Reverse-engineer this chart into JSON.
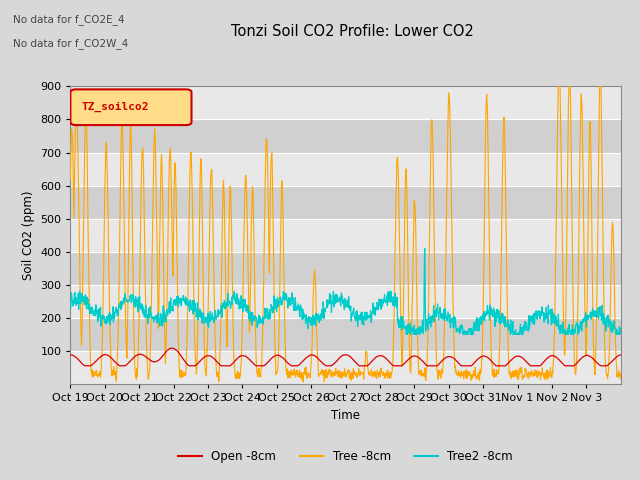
{
  "title": "Tonzi Soil CO2 Profile: Lower CO2",
  "ylabel": "Soil CO2 (ppm)",
  "xlabel": "Time",
  "ylim": [
    0,
    900
  ],
  "annotation1": "No data for f_CO2E_4",
  "annotation2": "No data for f_CO2W_4",
  "legend_box_label": "TZ_soilco2",
  "legend_box_color": "#cc0000",
  "legend_box_bg": "#ffdd88",
  "fig_bg": "#d8d8d8",
  "plot_bg_light": "#e8e8e8",
  "plot_bg_dark": "#d0d0d0",
  "x_tick_labels": [
    "Oct 19",
    "Oct 20",
    "Oct 21",
    "Oct 22",
    "Oct 23",
    "Oct 24",
    "Oct 25",
    "Oct 26",
    "Oct 27",
    "Oct 28",
    "Oct 29",
    "Oct 30",
    "Oct 31",
    "Nov 1",
    "Nov 2",
    "Nov 3"
  ],
  "series": {
    "open": {
      "color": "#dd0000",
      "label": "Open -8cm"
    },
    "tree": {
      "color": "#ffa500",
      "label": "Tree -8cm"
    },
    "tree2": {
      "color": "#00cccc",
      "label": "Tree2 -8cm"
    }
  }
}
